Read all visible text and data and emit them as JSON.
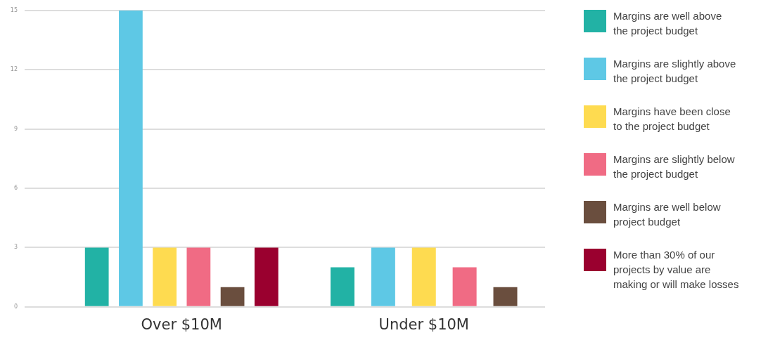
{
  "chart_data": {
    "type": "bar",
    "categories": [
      "Over $10M",
      "Under $10M"
    ],
    "series": [
      {
        "name": "Margins are well above the project budget",
        "color": "#22b2a5",
        "values": [
          3,
          2
        ]
      },
      {
        "name": "Margins are slightly above the project budget",
        "color": "#5ec8e5",
        "values": [
          15,
          3
        ]
      },
      {
        "name": "Margins have been close to the project budget",
        "color": "#fedb50",
        "values": [
          3,
          3
        ]
      },
      {
        "name": "Margins are slightly below the project budget",
        "color": "#f06b84",
        "values": [
          3,
          2
        ]
      },
      {
        "name": "Margins are well below project budget",
        "color": "#6a4e3e",
        "values": [
          1,
          1
        ]
      },
      {
        "name": "More than 30% of our projects by value are making or will make losses",
        "color": "#9a002f",
        "values": [
          3,
          null
        ]
      }
    ],
    "ylim": [
      0,
      15
    ],
    "yticks": [
      0,
      3,
      6,
      9,
      12,
      15
    ],
    "grid": "y",
    "legend": "right"
  }
}
